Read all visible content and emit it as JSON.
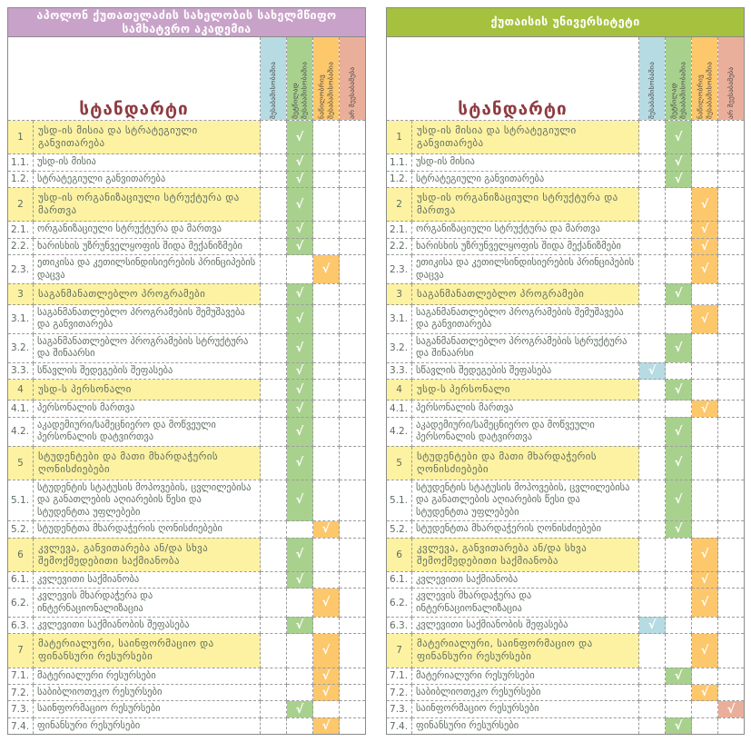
{
  "standard_label": "სტანდარტი",
  "check_glyph": "√",
  "colors": {
    "purple_header": "#c8a2c8",
    "green_header": "#a5c13d",
    "section_row_bg": "#fdf2a2",
    "standard_title_text": "#8e3c41"
  },
  "columns": [
    {
      "key": "blue",
      "label": "შესაბამისობაშია",
      "color": "#b7dbe2"
    },
    {
      "key": "green",
      "label": "მეტწილად შესაბამისობაშია",
      "color": "#a9d18e"
    },
    {
      "key": "orange",
      "label": "ნაწილობრივ შესაბამისობაშია",
      "color": "#fdc76c"
    },
    {
      "key": "red",
      "label": "არ შეესაბამება",
      "color": "#eaaf9b"
    }
  ],
  "standards": [
    {
      "num": "1",
      "text": "უსდ-ის მისია და სტრატეგიული განვითარება",
      "section": true
    },
    {
      "num": "1.1.",
      "text": "უსდ-ის მისია",
      "section": false
    },
    {
      "num": "1.2.",
      "text": "სტრატეგიული განვითარება",
      "section": false
    },
    {
      "num": "2",
      "text": "უსდ-ის ორგანიზაციული სტრუქტურა და მართვა",
      "section": true
    },
    {
      "num": "2.1.",
      "text": "ორგანიზაციული სტრუქტურა და მართვა",
      "section": false
    },
    {
      "num": "2.2.",
      "text": "ხარისხის უზრუნველყოფის შიდა მექანიზმები",
      "section": false
    },
    {
      "num": "2.3.",
      "text": "ეთიკისა და კეთილსინდისიერების პრინციპების დაცვა",
      "section": false
    },
    {
      "num": "3",
      "text": "საგანმანათლებლო პროგრამები",
      "section": true
    },
    {
      "num": "3.1.",
      "text": "საგანმანათლებლო პროგრამების შემუშავება და განვითარება",
      "section": false
    },
    {
      "num": "3.2.",
      "text": "საგანმანათლებლო პროგრამების სტრუქტურა და შინაარსი",
      "section": false
    },
    {
      "num": "3.3.",
      "text": "სწავლის შედეგების შეფასება",
      "section": false
    },
    {
      "num": "4",
      "text": "უსდ-ს პერსონალი",
      "section": true
    },
    {
      "num": "4.1.",
      "text": "პერსონალის მართვა",
      "section": false
    },
    {
      "num": "4.2.",
      "text": "აკადემიური/სამეცნიერო და მოწვეული პერსონალის დატვირთვა",
      "section": false
    },
    {
      "num": "5",
      "text": "სტუდენტები და მათი მხარდაჭერის ღონისძიებები",
      "section": true
    },
    {
      "num": "5.1.",
      "text": "სტუდენტის სტატუსის მოპოვების, ცვლილებისა და განათლების აღიარების წესი და სტუდენტთა უფლებები",
      "section": false
    },
    {
      "num": "5.2.",
      "text": "სტუდენტთა მხარდაჭერის ღონისძიებები",
      "section": false
    },
    {
      "num": "6",
      "text": "კვლევა, განვითარება ან/და სხვა შემოქმედებითი საქმიანობა",
      "section": true
    },
    {
      "num": "6.1.",
      "text": "კვლევითი საქმიანობა",
      "section": false
    },
    {
      "num": "6.2.",
      "text": "კვლევის მხარდაჭერა და ინტერნაციონალიზაცია",
      "section": false
    },
    {
      "num": "6.3.",
      "text": "კვლევითი საქმიანობის შეფასება",
      "section": false
    },
    {
      "num": "7",
      "text": "მატერიალური, საინფორმაციო და ფინანსური რესურსები",
      "section": true
    },
    {
      "num": "7.1.",
      "text": "მატერიალური რესურსები",
      "section": false
    },
    {
      "num": "7.2.",
      "text": "საბიბლიოთეკო რესურსები",
      "section": false
    },
    {
      "num": "7.3.",
      "text": "საინფორმაციო რესურსები",
      "section": false
    },
    {
      "num": "7.4.",
      "text": "ფინანსური რესურსები",
      "section": false
    }
  ],
  "tables": [
    {
      "title": "აპოლონ ქუთათელაძის სახელობის სახელმწიფო სამხატვრო აკადემია",
      "header_color": "#c8a2c8",
      "marks": [
        "green",
        "green",
        "green",
        "green",
        "green",
        "green",
        "orange",
        "green",
        "green",
        "green",
        "green",
        "green",
        "green",
        "green",
        "green",
        "green",
        "orange",
        "green",
        "green",
        "orange",
        "green",
        "orange",
        "orange",
        "orange",
        "green",
        "orange"
      ]
    },
    {
      "title": "ქუთაისის უნივერსიტეტი",
      "header_color": "#a5c13d",
      "marks": [
        "green",
        "green",
        "green",
        "orange",
        "orange",
        "orange",
        "orange",
        "green",
        "orange",
        "green",
        "blue",
        "green",
        "orange",
        "green",
        "green",
        "green",
        "green",
        "orange",
        "orange",
        "orange",
        "blue",
        "orange",
        "green",
        "orange",
        "red",
        "green"
      ]
    }
  ]
}
